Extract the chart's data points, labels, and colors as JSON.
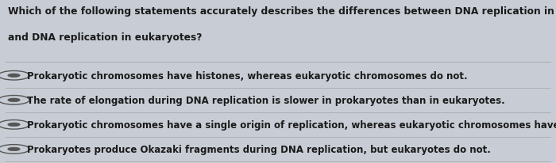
{
  "question_line1": "Which of the following statements accurately describes the differences between DNA replication in prokaryotes",
  "question_line2": "and DNA replication in eukaryotes?",
  "options": [
    "Prokaryotic chromosomes have histones, whereas eukaryotic chromosomes do not.",
    "The rate of elongation during DNA replication is slower in prokaryotes than in eukaryotes.",
    "Prokaryotic chromosomes have a single origin of replication, whereas eukaryotic chromosomes have many.",
    "Prokaryotes produce Okazaki fragments during DNA replication, but eukaryotes do not."
  ],
  "bg_color": "#c8cdd5",
  "text_color": "#1a1a1a",
  "question_fontsize": 8.8,
  "option_fontsize": 8.5,
  "circle_edge_color": "#555555",
  "circle_fill_color": "#555555",
  "line_color": "#aaaaaa",
  "figsize": [
    7.0,
    2.07
  ],
  "dpi": 100
}
